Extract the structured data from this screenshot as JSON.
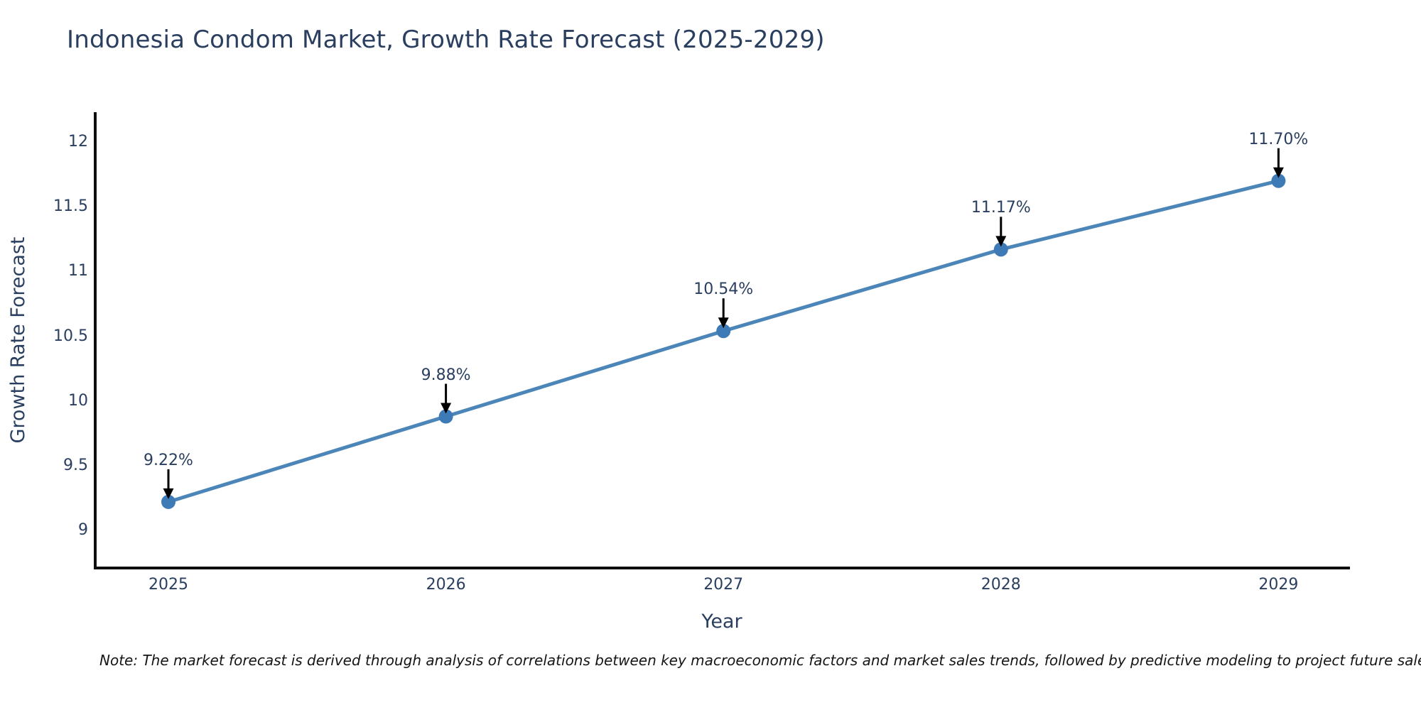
{
  "title": "Indonesia Condom Market, Growth Rate Forecast (2025-2029)",
  "note": "Note: The market forecast is derived through analysis of correlations between key macroeconomic factors and market sales trends, followed by predictive modeling to project future sales",
  "chart_data": {
    "type": "line",
    "title": "Indonesia Condom Market, Growth Rate Forecast (2025-2029)",
    "xlabel": "Year",
    "ylabel": "Growth Rate Forecast",
    "categories": [
      "2025",
      "2026",
      "2027",
      "2028",
      "2029"
    ],
    "values": [
      9.22,
      9.88,
      10.54,
      11.17,
      11.7
    ],
    "point_labels": [
      "9.22%",
      "9.88%",
      "10.54%",
      "11.17%",
      "11.70%"
    ],
    "yticks": [
      9,
      9.5,
      10,
      10.5,
      11,
      11.5,
      12
    ],
    "ytick_labels": [
      "9",
      "9.5",
      "10",
      "10.5",
      "11",
      "11.5",
      "12"
    ],
    "ylim": [
      8.71,
      12.22
    ],
    "grid": false,
    "legend": "none",
    "line_color": "#4c86b8",
    "marker_color": "#3d7ab6",
    "arrow_color": "#000000",
    "axis_color": "#0d0d0d",
    "text_color": "#2a3f5f"
  }
}
